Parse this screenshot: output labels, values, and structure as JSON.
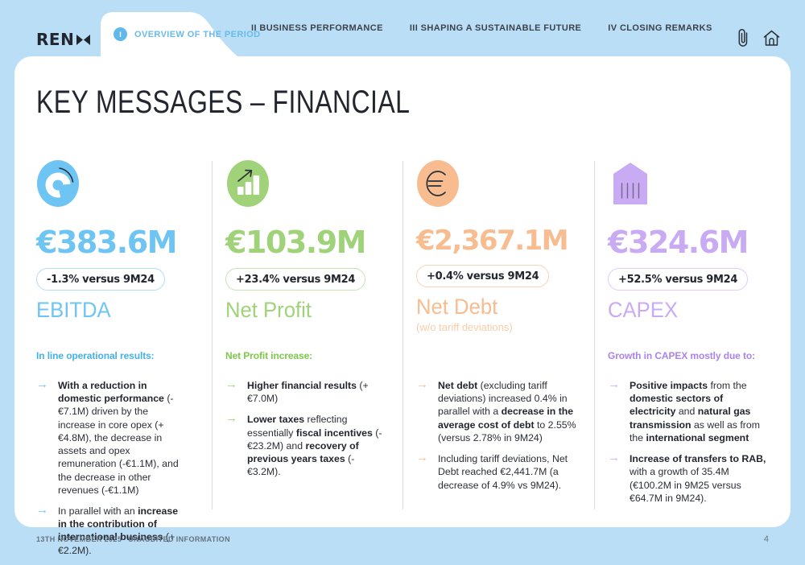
{
  "topbar": {
    "logo_text": "REN",
    "accent": "#5fb9ea",
    "tabs": [
      {
        "numeral": "I",
        "label": "OVERVIEW OF THE PERIOD",
        "active": true
      },
      {
        "numeral": "II",
        "label": "BUSINESS PERFORMANCE",
        "active": false
      },
      {
        "numeral": "III",
        "label": "SHAPING A SUSTAINABLE FUTURE",
        "active": false
      },
      {
        "numeral": "IV",
        "label": "CLOSING REMARKS",
        "active": false
      }
    ],
    "action_icons": [
      "paperclip-icon",
      "home-icon"
    ]
  },
  "title": "KEY MESSAGES – FINANCIAL",
  "metrics": [
    {
      "id": "ebitda",
      "icon": "donut-chart-icon",
      "value": "€383.6M",
      "badge": "-1.3% versus 9M24",
      "label": "EBITDA",
      "sublabel": "",
      "intro": "In line operational results:",
      "colors": {
        "accent": "#6ec4f2",
        "intro": "#45b1e9",
        "badge_border": "#b3ddf5",
        "sub": "#9fd4f0"
      },
      "bullets": [
        {
          "segments": [
            {
              "t": "With a reduction in domestic performance",
              "b": true
            },
            {
              "t": " (-€7.1M) driven by the increase in core opex (+€4.8M), the decrease in assets and opex remuneration (-€1.1M), and the decrease in other revenues (-€1.1M)",
              "b": false
            }
          ]
        },
        {
          "segments": [
            {
              "t": "In parallel with an ",
              "b": false
            },
            {
              "t": "increase in the contribution of international business",
              "b": true
            },
            {
              "t": " (+€2.2M).",
              "b": false
            }
          ]
        }
      ]
    },
    {
      "id": "net-profit",
      "icon": "bar-chart-up-icon",
      "value": "€103.9M",
      "badge": "+23.4% versus 9M24",
      "label": "Net Profit",
      "sublabel": "",
      "intro": "Net Profit increase:",
      "colors": {
        "accent": "#a0d379",
        "intro": "#7cc94b",
        "badge_border": "#c6e4ad",
        "sub": "#c6e4ad"
      },
      "bullets": [
        {
          "segments": [
            {
              "t": "Higher financial results",
              "b": true
            },
            {
              "t": " (+€7.0M)",
              "b": false
            }
          ]
        },
        {
          "segments": [
            {
              "t": "Lower taxes",
              "b": true
            },
            {
              "t": " reflecting essentially ",
              "b": false
            },
            {
              "t": "fiscal incentives",
              "b": true
            },
            {
              "t": " (-€23.2M) and ",
              "b": false
            },
            {
              "t": "recovery of previous years taxes",
              "b": true
            },
            {
              "t": " (-€3.2M).",
              "b": false
            }
          ]
        }
      ]
    },
    {
      "id": "net-debt",
      "icon": "euro-sign-icon",
      "value": "€2,367.1M",
      "badge": "+0.4% versus 9M24",
      "label": "Net Debt",
      "sublabel": "(w/o tariff deviations)",
      "intro": "",
      "colors": {
        "accent": "#f7bd90",
        "intro": "#f7bd90",
        "badge_border": "#f8d3b5",
        "sub": "#f9cda8"
      },
      "bullets": [
        {
          "segments": [
            {
              "t": "Net debt",
              "b": true
            },
            {
              "t": " (excluding tariff deviations) increased 0.4% in parallel with a ",
              "b": false
            },
            {
              "t": "decrease in the average cost of debt",
              "b": true
            },
            {
              "t": " to 2.55% (versus 2.78% in 9M24)",
              "b": false
            }
          ]
        },
        {
          "segments": [
            {
              "t": "Including tariff deviations, Net Debt reached €2,441.7M (a decrease of 4.9% vs 9M24).",
              "b": false
            }
          ]
        }
      ]
    },
    {
      "id": "capex",
      "icon": "bank-building-icon",
      "value": "€324.6M",
      "badge": "+52.5% versus 9M24",
      "label": "CAPEX",
      "sublabel": "",
      "intro": "Growth in CAPEX mostly due to:",
      "colors": {
        "accent": "#c9abf4",
        "intro": "#ab84e9",
        "badge_border": "#e0ccf9",
        "sub": "#e0ccf9"
      },
      "bullets": [
        {
          "segments": [
            {
              "t": "Positive impacts",
              "b": true
            },
            {
              "t": " from the ",
              "b": false
            },
            {
              "t": "domestic sectors of electricity",
              "b": true
            },
            {
              "t": " and ",
              "b": false
            },
            {
              "t": "natural gas transmission",
              "b": true
            },
            {
              "t": " as well as from the ",
              "b": false
            },
            {
              "t": "international segment",
              "b": true
            }
          ]
        },
        {
          "segments": [
            {
              "t": "Increase of transfers to RAB,",
              "b": true
            },
            {
              "t": " with a growth of 35.4M (€100.2M in 9M25 versus €64.7M in 9M24).",
              "b": false
            }
          ]
        }
      ]
    }
  ],
  "footer": {
    "date": "13TH NOVEMBER 2025",
    "note": "UNAUDITED INFORMATION",
    "page": "4"
  }
}
